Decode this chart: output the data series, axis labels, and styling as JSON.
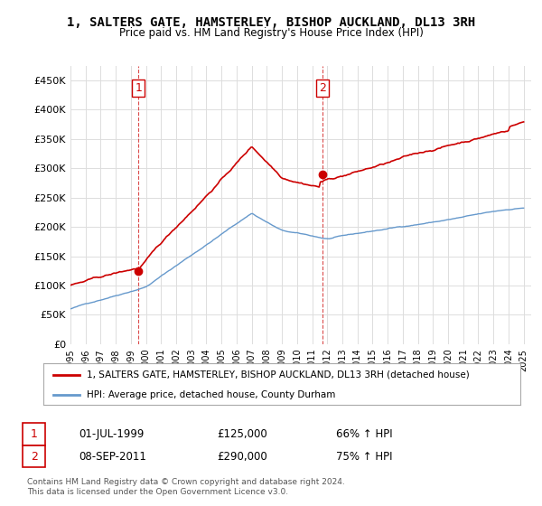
{
  "title": "1, SALTERS GATE, HAMSTERLEY, BISHOP AUCKLAND, DL13 3RH",
  "subtitle": "Price paid vs. HM Land Registry's House Price Index (HPI)",
  "yticks": [
    0,
    50000,
    100000,
    150000,
    200000,
    250000,
    300000,
    350000,
    400000,
    450000
  ],
  "ylim": [
    0,
    475000
  ],
  "xlim_start": 1995.0,
  "xlim_end": 2025.5,
  "purchase1_x": 1999.5,
  "purchase1_y": 125000,
  "purchase2_x": 2011.69,
  "purchase2_y": 290000,
  "red_color": "#cc0000",
  "blue_color": "#6699cc",
  "legend_line1": "1, SALTERS GATE, HAMSTERLEY, BISHOP AUCKLAND, DL13 3RH (detached house)",
  "legend_line2": "HPI: Average price, detached house, County Durham",
  "table_row1_num": "1",
  "table_row1_date": "01-JUL-1999",
  "table_row1_price": "£125,000",
  "table_row1_hpi": "66% ↑ HPI",
  "table_row2_num": "2",
  "table_row2_date": "08-SEP-2011",
  "table_row2_price": "£290,000",
  "table_row2_hpi": "75% ↑ HPI",
  "footer": "Contains HM Land Registry data © Crown copyright and database right 2024.\nThis data is licensed under the Open Government Licence v3.0.",
  "bg_color": "#ffffff",
  "grid_color": "#dddddd"
}
